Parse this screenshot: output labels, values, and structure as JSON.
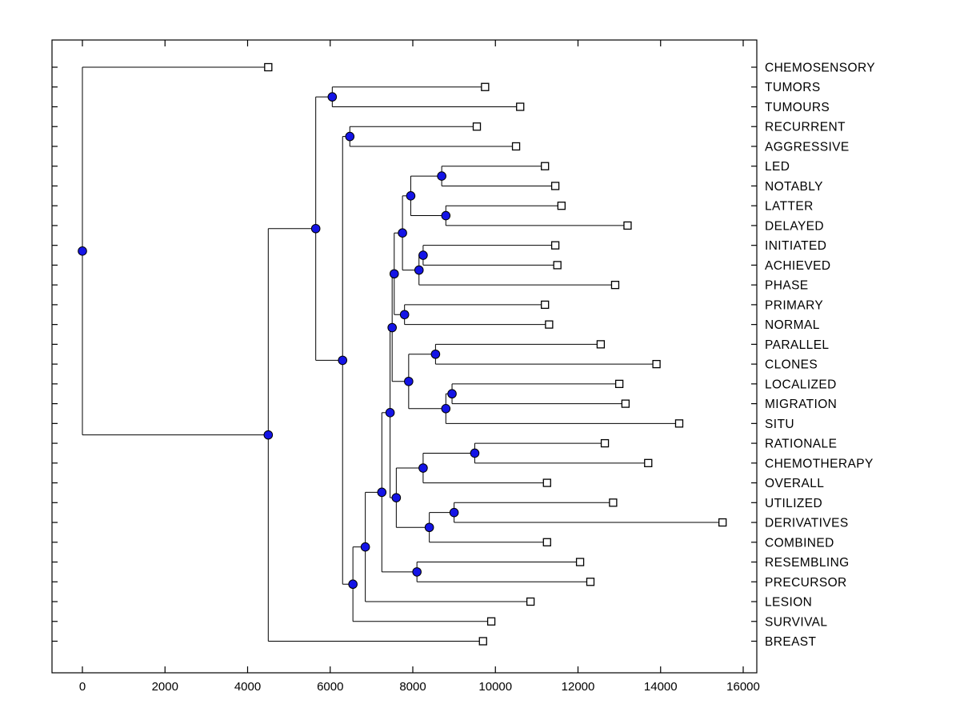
{
  "figure": {
    "background": "#FFFFFF"
  },
  "chart_data": {
    "type": "dendrogram",
    "orientation": "horizontal-left-to-right",
    "title": "",
    "xlabel": "",
    "ylabel": "",
    "grid": false,
    "xlim": [
      -736,
      16330
    ],
    "axis": {
      "x_ticks": [
        0,
        2000,
        4000,
        6000,
        8000,
        10000,
        12000,
        14000,
        16000
      ],
      "x_tick_labels": [
        "0",
        "2000",
        "4000",
        "6000",
        "8000",
        "10000",
        "12000",
        "14000",
        "16000"
      ]
    },
    "colors": {
      "line": "#000000",
      "node_marker_fill": "#1414E6",
      "node_marker_edge": "#000000",
      "leaf_marker_fill": "#FFFFFF",
      "leaf_marker_edge": "#000000",
      "text": "#000000",
      "background": "#FFFFFF"
    },
    "leaf_order": [
      "CHEMOSENSORY",
      "TUMORS",
      "TUMOURS",
      "RECURRENT",
      "AGGRESSIVE",
      "LED",
      "NOTABLY",
      "LATTER",
      "DELAYED",
      "INITIATED",
      "ACHIEVED",
      "PHASE",
      "PRIMARY",
      "NORMAL",
      "PARALLEL",
      "CLONES",
      "LOCALIZED",
      "MIGRATION",
      "SITU",
      "RATIONALE",
      "CHEMOTHERAPY",
      "OVERALL",
      "UTILIZED",
      "DERIVATIVES",
      "COMBINED",
      "RESEMBLING",
      "PRECURSOR",
      "LESION",
      "SURVIVAL",
      "BREAST"
    ],
    "tree": {
      "x": 0,
      "children": [
        {
          "name": "CHEMOSENSORY",
          "x": 4500
        },
        {
          "x": 4500,
          "children": [
            {
              "x": 5650,
              "children": [
                {
                  "x": 6050,
                  "children": [
                    {
                      "name": "TUMORS",
                      "x": 9750
                    },
                    {
                      "name": "TUMOURS",
                      "x": 10600
                    }
                  ]
                },
                {
                  "x": 6300,
                  "children": [
                    {
                      "x": 6475,
                      "children": [
                        {
                          "name": "RECURRENT",
                          "x": 9550
                        },
                        {
                          "name": "AGGRESSIVE",
                          "x": 10500
                        }
                      ]
                    },
                    {
                      "x": 6550,
                      "children": [
                        {
                          "x": 6850,
                          "children": [
                            {
                              "x": 7250,
                              "children": [
                                {
                                  "x": 7450,
                                  "children": [
                                    {
                                      "x": 7500,
                                      "children": [
                                        {
                                          "x": 7550,
                                          "children": [
                                            {
                                              "x": 7750,
                                              "children": [
                                                {
                                                  "x": 7950,
                                                  "children": [
                                                    {
                                                      "x": 8700,
                                                      "children": [
                                                        {
                                                          "name": "LED",
                                                          "x": 11200
                                                        },
                                                        {
                                                          "name": "NOTABLY",
                                                          "x": 11450
                                                        }
                                                      ]
                                                    },
                                                    {
                                                      "x": 8800,
                                                      "children": [
                                                        {
                                                          "name": "LATTER",
                                                          "x": 11600
                                                        },
                                                        {
                                                          "name": "DELAYED",
                                                          "x": 13200
                                                        }
                                                      ]
                                                    }
                                                  ]
                                                },
                                                {
                                                  "x": 8150,
                                                  "children": [
                                                    {
                                                      "x": 8250,
                                                      "children": [
                                                        {
                                                          "name": "INITIATED",
                                                          "x": 11450
                                                        },
                                                        {
                                                          "name": "ACHIEVED",
                                                          "x": 11500
                                                        }
                                                      ]
                                                    },
                                                    {
                                                      "name": "PHASE",
                                                      "x": 12900
                                                    }
                                                  ]
                                                }
                                              ]
                                            },
                                            {
                                              "x": 7800,
                                              "children": [
                                                {
                                                  "name": "PRIMARY",
                                                  "x": 11200
                                                },
                                                {
                                                  "name": "NORMAL",
                                                  "x": 11300
                                                }
                                              ]
                                            }
                                          ]
                                        },
                                        {
                                          "x": 7900,
                                          "children": [
                                            {
                                              "x": 8550,
                                              "children": [
                                                {
                                                  "name": "PARALLEL",
                                                  "x": 12550
                                                },
                                                {
                                                  "name": "CLONES",
                                                  "x": 13900
                                                }
                                              ]
                                            },
                                            {
                                              "x": 8800,
                                              "children": [
                                                {
                                                  "x": 8950,
                                                  "children": [
                                                    {
                                                      "name": "LOCALIZED",
                                                      "x": 13000
                                                    },
                                                    {
                                                      "name": "MIGRATION",
                                                      "x": 13150
                                                    }
                                                  ]
                                                },
                                                {
                                                  "name": "SITU",
                                                  "x": 14450
                                                }
                                              ]
                                            }
                                          ]
                                        }
                                      ]
                                    },
                                    {
                                      "x": 7600,
                                      "children": [
                                        {
                                          "x": 8250,
                                          "children": [
                                            {
                                              "x": 9500,
                                              "children": [
                                                {
                                                  "name": "RATIONALE",
                                                  "x": 12650
                                                },
                                                {
                                                  "name": "CHEMOTHERAPY",
                                                  "x": 13700
                                                }
                                              ]
                                            },
                                            {
                                              "name": "OVERALL",
                                              "x": 11250
                                            }
                                          ]
                                        },
                                        {
                                          "x": 8400,
                                          "children": [
                                            {
                                              "x": 9000,
                                              "children": [
                                                {
                                                  "name": "UTILIZED",
                                                  "x": 12850
                                                },
                                                {
                                                  "name": "DERIVATIVES",
                                                  "x": 15500
                                                }
                                              ]
                                            },
                                            {
                                              "name": "COMBINED",
                                              "x": 11250
                                            }
                                          ]
                                        }
                                      ]
                                    }
                                  ]
                                },
                                {
                                  "x": 8100,
                                  "children": [
                                    {
                                      "name": "RESEMBLING",
                                      "x": 12050
                                    },
                                    {
                                      "name": "PRECURSOR",
                                      "x": 12300
                                    }
                                  ]
                                }
                              ]
                            },
                            {
                              "name": "LESION",
                              "x": 10850
                            }
                          ]
                        },
                        {
                          "name": "SURVIVAL",
                          "x": 9900
                        }
                      ]
                    }
                  ]
                }
              ]
            },
            {
              "name": "BREAST",
              "x": 9700
            }
          ]
        }
      ]
    }
  }
}
